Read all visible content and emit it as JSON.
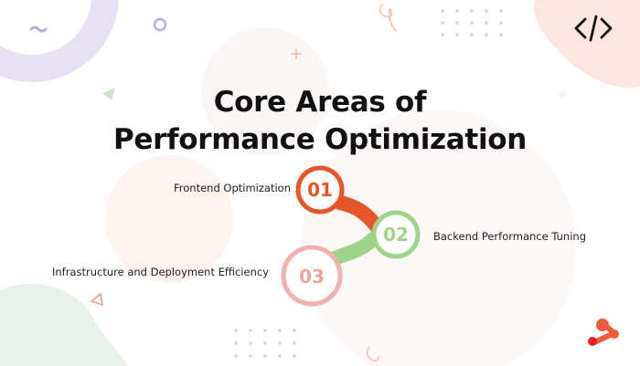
{
  "title": {
    "line1": "Core Areas of",
    "line2": "Performance Optimization"
  },
  "steps": [
    {
      "number": "01",
      "label": "Frontend Optimization",
      "color": "#e8542c",
      "color_light": "#f07a55"
    },
    {
      "number": "02",
      "label": "Backend Performance Tuning",
      "color": "#9fd38a",
      "color_light": "#c6e7b8"
    },
    {
      "number": "03",
      "label": "Infrastructure and Deployment Efficiency",
      "color": "#f0a3a3",
      "color_light": "#f7c9c9"
    }
  ],
  "colors": {
    "accent_orange": "#e8542c",
    "accent_green": "#9fd38a",
    "accent_pink": "#f0a3a3",
    "lavender": "#d9d4ef",
    "peach": "#fde5df",
    "mint": "#e7f1e8"
  },
  "icons": [
    "code-icon",
    "brand-logo-icon"
  ]
}
